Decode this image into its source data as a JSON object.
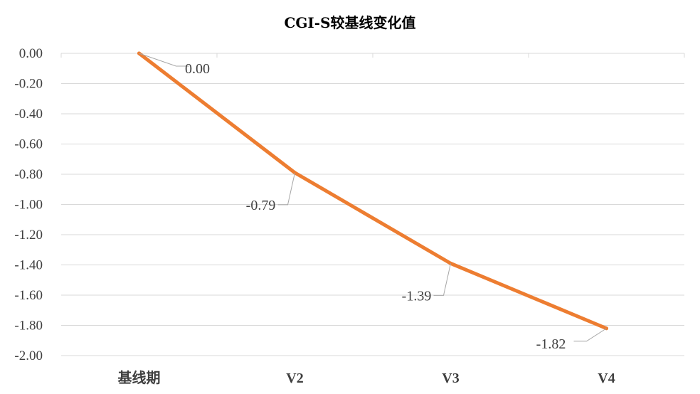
{
  "chart_data": {
    "type": "line",
    "title": "CGI-S较基线变化值",
    "xlabel": "",
    "ylabel": "",
    "categories": [
      "基线期",
      "V2",
      "V3",
      "V4"
    ],
    "series": [
      {
        "values": [
          0.0,
          -0.79,
          -1.39,
          -1.82
        ],
        "data_labels": [
          "0.00",
          "-0.79",
          "-1.39",
          "-1.82"
        ]
      }
    ],
    "ylim": [
      -2.0,
      0.0
    ],
    "ystep": 0.2,
    "yticks": [
      "0.00",
      "-0.20",
      "-0.40",
      "-0.60",
      "-0.80",
      "-1.00",
      "-1.20",
      "-1.40",
      "-1.60",
      "-1.80",
      "-2.00"
    ],
    "grid": true,
    "legend": "none",
    "colors": {
      "line": "#ED7D31",
      "grid": "#D9D9D9",
      "leader": "#A6A6A6",
      "text": "#404040"
    }
  }
}
